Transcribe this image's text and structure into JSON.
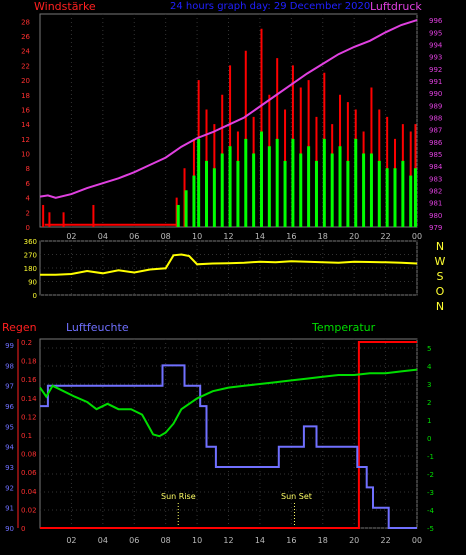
{
  "chart_data": [
    {
      "type": "line",
      "title": "24 hours graph day: 29 December 2020",
      "left_label": "Windstärke",
      "right_label": "Luftdruck",
      "y_left_ticks": [
        "0",
        "2",
        "4",
        "6",
        "8",
        "10",
        "12",
        "14",
        "16",
        "18",
        "20",
        "22",
        "24",
        "26",
        "28"
      ],
      "y_right_ticks": [
        "979",
        "980",
        "981",
        "982",
        "983",
        "984",
        "985",
        "986",
        "987",
        "988",
        "989",
        "990",
        "991",
        "992",
        "993",
        "994",
        "995",
        "996"
      ],
      "x_ticks": [
        "02",
        "04",
        "06",
        "08",
        "10",
        "12",
        "14",
        "16",
        "18",
        "20",
        "22",
        "00"
      ],
      "ylim_left": [
        0,
        29
      ],
      "ylim_right": [
        979,
        996.5
      ],
      "series": [
        {
          "name": "Luftdruck",
          "color": "#e040e0",
          "axis": "right",
          "x": [
            0,
            0.5,
            1,
            2,
            3,
            4,
            5,
            6,
            7,
            8,
            9,
            10,
            11,
            12,
            13,
            14,
            15,
            16,
            17,
            18,
            19,
            20,
            21,
            22,
            23,
            24
          ],
          "y": [
            981.5,
            981.6,
            981.4,
            981.7,
            982.2,
            982.6,
            983.0,
            983.5,
            984.1,
            984.7,
            985.6,
            986.3,
            986.8,
            987.4,
            988.0,
            988.9,
            989.8,
            990.7,
            991.6,
            992.4,
            993.2,
            993.8,
            994.3,
            995.0,
            995.6,
            996.0
          ]
        },
        {
          "name": "Windböen",
          "color": "#ff0000",
          "axis": "left",
          "x": [
            0.2,
            0.6,
            1.5,
            3.4,
            8.7,
            9.2,
            9.8,
            10.1,
            10.6,
            11.1,
            11.6,
            12.1,
            12.6,
            13.1,
            13.6,
            14.1,
            14.6,
            15.1,
            15.6,
            16.1,
            16.6,
            17.1,
            17.6,
            18.1,
            18.6,
            19.1,
            19.6,
            20.1,
            20.6,
            21.1,
            21.6,
            22.1,
            22.6,
            23.1,
            23.6,
            23.9
          ],
          "y": [
            3,
            2,
            2,
            3,
            4,
            8,
            12,
            20,
            16,
            14,
            18,
            22,
            13,
            24,
            15,
            27,
            18,
            23,
            16,
            22,
            19,
            20,
            15,
            21,
            14,
            18,
            17,
            16,
            13,
            19,
            16,
            15,
            12,
            14,
            13,
            14
          ]
        },
        {
          "name": "Wind",
          "color": "#00ff00",
          "axis": "left",
          "x": [
            8.8,
            9.3,
            9.8,
            10.1,
            10.6,
            11.1,
            11.6,
            12.1,
            12.6,
            13.1,
            13.6,
            14.1,
            14.6,
            15.1,
            15.6,
            16.1,
            16.6,
            17.1,
            17.6,
            18.1,
            18.6,
            19.1,
            19.6,
            20.1,
            20.6,
            21.1,
            21.6,
            22.1,
            22.6,
            23.1,
            23.6,
            23.9
          ],
          "y": [
            3,
            5,
            7,
            12,
            9,
            8,
            10,
            11,
            9,
            12,
            10,
            13,
            11,
            12,
            9,
            12,
            10,
            11,
            9,
            12,
            10,
            11,
            9,
            12,
            10,
            10,
            9,
            8,
            8,
            9,
            7,
            8
          ]
        }
      ]
    },
    {
      "type": "line",
      "title": "",
      "right_label": "N W S O N",
      "y_left_ticks": [
        "0",
        "90",
        "180",
        "270",
        "360"
      ],
      "x_ticks": [],
      "ylim_left": [
        0,
        360
      ],
      "series": [
        {
          "name": "Windrichtung",
          "color": "#ffff00",
          "axis": "left",
          "x": [
            0,
            1,
            2,
            3,
            4,
            5,
            6,
            7,
            8,
            8.5,
            9,
            9.5,
            10,
            11,
            12,
            13,
            14,
            15,
            16,
            17,
            18,
            19,
            20,
            21,
            22,
            23,
            24
          ],
          "y": [
            135,
            135,
            140,
            160,
            145,
            165,
            150,
            170,
            178,
            265,
            270,
            260,
            205,
            210,
            212,
            215,
            222,
            218,
            225,
            222,
            218,
            215,
            222,
            220,
            218,
            215,
            210
          ]
        }
      ]
    },
    {
      "type": "line",
      "title": "",
      "left_label": "Regen",
      "left2_label": "Luftfeuchte",
      "right_label": "Temperatur",
      "y_hum_ticks": [
        "90",
        "91",
        "92",
        "93",
        "94",
        "95",
        "96",
        "97",
        "98",
        "99"
      ],
      "y_rain_ticks": [
        "0",
        "0.02",
        "0.04",
        "0.06",
        "0.08",
        "0.1",
        "0.12",
        "0.14",
        "0.16",
        "0.18",
        "0.2"
      ],
      "y_temp_ticks": [
        "-5",
        "-4",
        "-3",
        "-2",
        "-1",
        "0",
        "1",
        "2",
        "3",
        "4",
        "5"
      ],
      "x_ticks": [
        "02",
        "04",
        "06",
        "08",
        "10",
        "12",
        "14",
        "16",
        "18",
        "20",
        "22",
        "00"
      ],
      "ylim_temp": [
        -5,
        5.5
      ],
      "ylim_hum": [
        90,
        99.3
      ],
      "annotations": [
        "Sun Rise",
        "Sun Set"
      ],
      "series": [
        {
          "name": "Temperatur",
          "color": "#00dd00",
          "axis": "temp",
          "x": [
            0,
            0.4,
            0.8,
            1.5,
            2.2,
            3,
            3.6,
            4.3,
            5,
            5.8,
            6.5,
            7.2,
            7.6,
            8,
            8.5,
            9,
            9.5,
            10,
            10.5,
            11,
            12,
            13,
            14,
            15,
            16,
            17,
            18,
            19,
            20,
            21,
            22,
            23,
            24
          ],
          "y": [
            2.8,
            2.3,
            2.9,
            2.6,
            2.3,
            2.0,
            1.6,
            1.9,
            1.6,
            1.6,
            1.3,
            0.2,
            0.1,
            0.3,
            0.8,
            1.6,
            1.9,
            2.2,
            2.4,
            2.6,
            2.8,
            2.9,
            3.0,
            3.1,
            3.2,
            3.3,
            3.4,
            3.5,
            3.5,
            3.6,
            3.6,
            3.7,
            3.8
          ]
        },
        {
          "name": "Luftfeuchte",
          "color": "#7070ff",
          "axis": "hum",
          "x": [
            0,
            0.5,
            0.5,
            4.8,
            4.8,
            6.8,
            6.8,
            7.8,
            7.8,
            9.2,
            9.2,
            10.2,
            10.2,
            10.6,
            10.6,
            11.2,
            11.2,
            14.3,
            14.3,
            15.2,
            15.2,
            16.8,
            16.8,
            17.6,
            17.6,
            20.2,
            20.2,
            20.8,
            20.8,
            21.2,
            21.2,
            22.2,
            22.2,
            24
          ],
          "y": [
            96,
            96,
            97,
            97,
            97,
            97,
            97,
            97,
            98,
            98,
            97,
            97,
            96,
            96,
            94,
            94,
            93,
            93,
            93,
            93,
            94,
            94,
            95,
            95,
            94,
            94,
            93,
            93,
            92,
            92,
            91,
            91,
            90,
            90
          ]
        },
        {
          "name": "Regen",
          "color": "#ff0000",
          "axis": "rain",
          "x": [
            0,
            20.3,
            20.3,
            24
          ],
          "y": [
            0,
            0,
            0.2,
            0.2
          ]
        }
      ]
    }
  ]
}
